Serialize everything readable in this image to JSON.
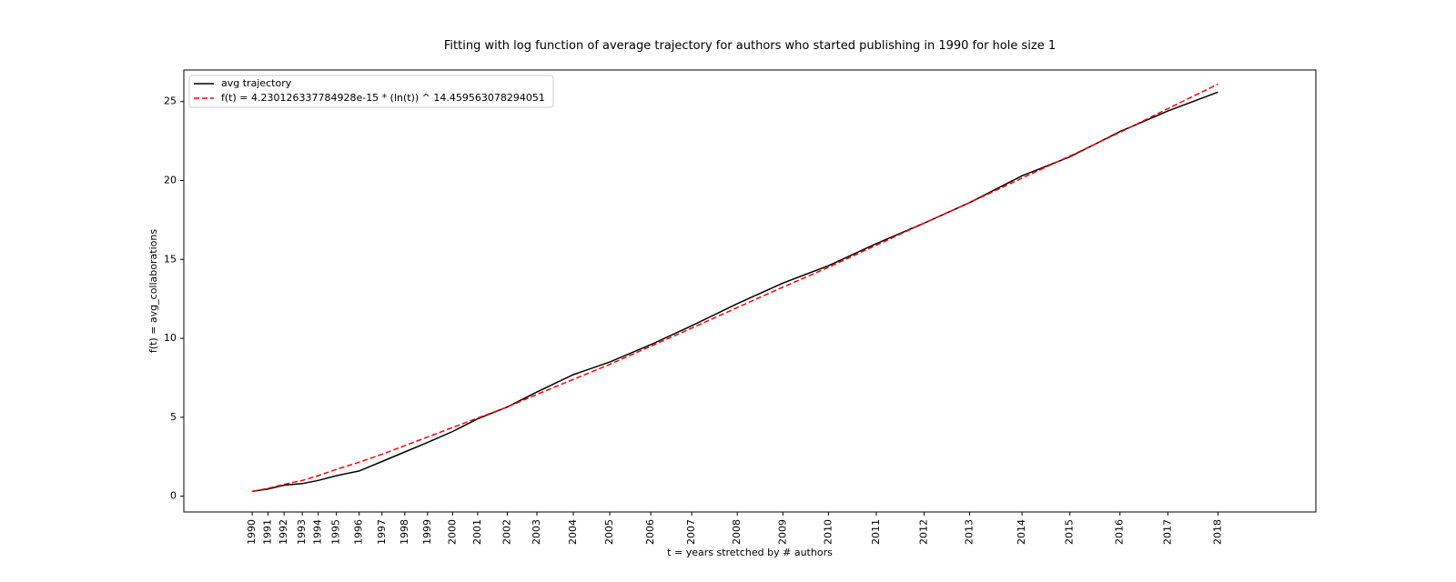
{
  "chart_data": {
    "type": "line",
    "title": "Fitting with log function of average trajectory for authors who started publishing in 1990 for hole size 1",
    "xlabel": "t = years stretched by # authors",
    "ylabel": "f(t) = avg_collaborations",
    "ylim": [
      -1,
      27
    ],
    "y_ticks": [
      0,
      5,
      10,
      15,
      20,
      25
    ],
    "legend_position": "upper-left",
    "grid": false,
    "x_ticks": [
      "1990",
      "1991",
      "1992",
      "1993",
      "1994",
      "1995",
      "1996",
      "1997",
      "1998",
      "1999",
      "2000",
      "2001",
      "2002",
      "2003",
      "2004",
      "2005",
      "2006",
      "2007",
      "2008",
      "2009",
      "2010",
      "2011",
      "2012",
      "2013",
      "2014",
      "2015",
      "2016",
      "2017",
      "2018"
    ],
    "x_tick_positions": [
      0,
      0.7,
      1.4,
      2.2,
      2.9,
      3.7,
      4.7,
      5.7,
      6.7,
      7.7,
      8.8,
      9.9,
      11.2,
      12.5,
      14.1,
      15.7,
      17.5,
      19.3,
      21.3,
      23.3,
      25.3,
      27.4,
      29.5,
      31.5,
      33.8,
      35.9,
      38.1,
      40.2,
      42.4
    ],
    "series": [
      {
        "name": "avg trajectory",
        "color": "#000000",
        "style": "solid",
        "x": [
          0,
          0.7,
          1.4,
          2.2,
          2.9,
          3.7,
          4.7,
          5.7,
          6.7,
          7.7,
          8.8,
          9.9,
          11.2,
          12.5,
          14.1,
          15.7,
          17.5,
          19.3,
          21.3,
          23.3,
          25.3,
          27.4,
          29.5,
          31.5,
          33.8,
          35.9,
          38.1,
          40.2,
          42.4
        ],
        "y": [
          0.3,
          0.45,
          0.7,
          0.8,
          1.0,
          1.3,
          1.6,
          2.2,
          2.8,
          3.4,
          4.1,
          4.9,
          5.65,
          6.6,
          7.7,
          8.5,
          9.6,
          10.8,
          12.2,
          13.5,
          14.6,
          16.0,
          17.3,
          18.6,
          20.3,
          21.5,
          23.1,
          24.4,
          25.6
        ]
      },
      {
        "name": "f(t) = 4.230126337784928e-15 * (ln(t)) ^ 14.459563078294051",
        "color": "#ff0000",
        "style": "dashed",
        "x": [
          0,
          0.7,
          1.4,
          2.2,
          2.9,
          3.7,
          4.7,
          5.7,
          6.7,
          7.7,
          8.8,
          9.9,
          11.2,
          12.5,
          14.1,
          15.7,
          17.5,
          19.3,
          21.3,
          23.3,
          25.3,
          27.4,
          29.5,
          31.5,
          33.8,
          35.9,
          38.1,
          40.2,
          42.4
        ],
        "y": [
          0.3,
          0.5,
          0.75,
          1.0,
          1.3,
          1.7,
          2.15,
          2.65,
          3.2,
          3.75,
          4.35,
          4.95,
          5.65,
          6.45,
          7.4,
          8.35,
          9.5,
          10.65,
          11.95,
          13.25,
          14.5,
          15.9,
          17.3,
          18.6,
          20.15,
          21.55,
          23.05,
          24.55,
          26.1
        ]
      }
    ]
  }
}
